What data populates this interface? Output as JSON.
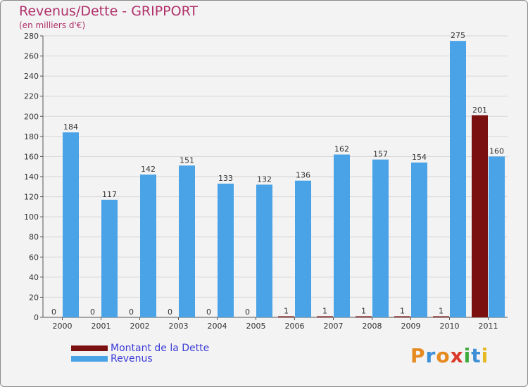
{
  "header": {
    "title": "Revenus/Dette - GRIPPORT",
    "subtitle": "(en milliers d'€)"
  },
  "colors": {
    "debt": "#7a1010",
    "revenue": "#4aa3e6",
    "grid": "#d6d6d6",
    "title": "#b0306a",
    "legend_text": "#3c3cd8"
  },
  "chart_data": {
    "type": "bar",
    "title": "Revenus/Dette - GRIPPORT",
    "ylabel": "(en milliers d'€)",
    "xlabel": "",
    "categories": [
      "2000",
      "2001",
      "2002",
      "2003",
      "2004",
      "2005",
      "2006",
      "2007",
      "2008",
      "2009",
      "2010",
      "2011"
    ],
    "ylim": [
      0,
      280
    ],
    "yticks": [
      0,
      20,
      40,
      60,
      80,
      100,
      120,
      140,
      160,
      180,
      200,
      220,
      240,
      260,
      280
    ],
    "grid": true,
    "legend_position": "bottom-left",
    "series": [
      {
        "name": "Montant de la Dette",
        "values": [
          0,
          0,
          0,
          0,
          0,
          0,
          1,
          1,
          1,
          1,
          1,
          201
        ]
      },
      {
        "name": "Revenus",
        "values": [
          184,
          117,
          142,
          151,
          133,
          132,
          136,
          162,
          157,
          154,
          275,
          160
        ]
      }
    ]
  },
  "legend": {
    "debt_label": "Montant de la Dette",
    "revenue_label": "Revenus"
  },
  "logo": {
    "letters": [
      "P",
      "r",
      "o",
      "x",
      "i",
      "t",
      "i"
    ],
    "colors": [
      "#e58a1f",
      "#3d8fd6",
      "#e58a1f",
      "#d93a2b",
      "#3daa3d",
      "#3d8fd6",
      "#e5b81f"
    ]
  }
}
